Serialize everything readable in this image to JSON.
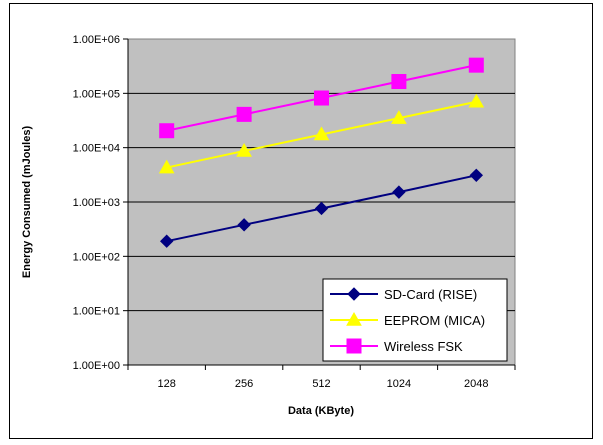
{
  "chart_data": {
    "type": "line",
    "x_scale": "category",
    "y_scale": "log",
    "categories": [
      "128",
      "256",
      "512",
      "1024",
      "2048"
    ],
    "ylim": [
      1,
      1000000
    ],
    "y_tick_labels": [
      "1.00E+00",
      "1.00E+01",
      "1.00E+02",
      "1.00E+03",
      "1.00E+04",
      "1.00E+05",
      "1.00E+06"
    ],
    "y_tick_values": [
      1,
      10,
      100,
      1000,
      10000,
      100000,
      1000000
    ],
    "xlabel": "Data (KByte)",
    "ylabel": "Energy Consumed (mJoules)",
    "grid": "horizontal",
    "plot_background": "#c0c0c0",
    "legend_position": "bottom-right",
    "series": [
      {
        "name": "SD-Card (RISE)",
        "color": "#000080",
        "marker": "diamond",
        "values": [
          190,
          380,
          760,
          1520,
          3100
        ]
      },
      {
        "name": "EEPROM (MICA)",
        "color": "#ffff00",
        "marker": "triangle",
        "values": [
          4300,
          8700,
          17500,
          35000,
          70000
        ]
      },
      {
        "name": "Wireless FSK",
        "color": "#ff00ff",
        "marker": "square",
        "values": [
          20500,
          41000,
          82000,
          165000,
          330000
        ]
      }
    ]
  }
}
